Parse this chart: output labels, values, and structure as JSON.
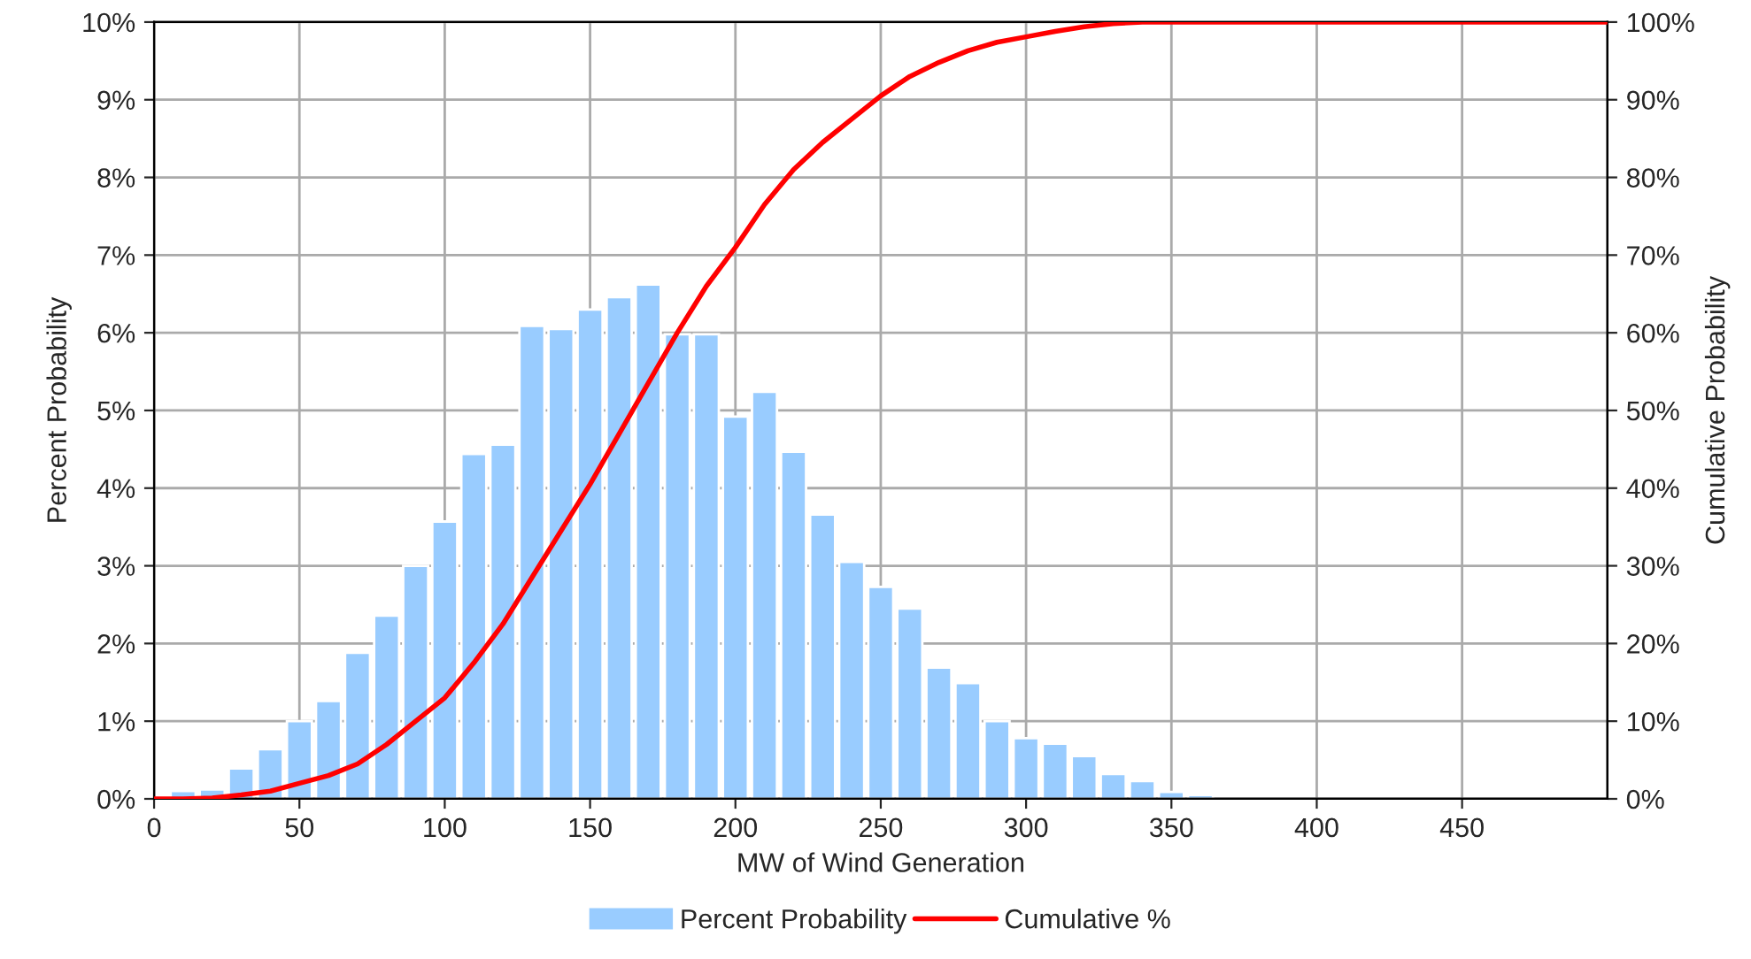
{
  "chart_data": {
    "type": "bar",
    "xlabel": "MW of Wind Generation",
    "ylabel": "Percent Probability",
    "y2label": "Cumulative Probability",
    "xlim": [
      0,
      500
    ],
    "xticks": [
      0,
      50,
      100,
      150,
      200,
      250,
      300,
      350,
      400,
      450
    ],
    "ylim": [
      0,
      10
    ],
    "yticks": [
      {
        "value": 0,
        "label": "0%"
      },
      {
        "value": 1,
        "label": "1%"
      },
      {
        "value": 2,
        "label": "2%"
      },
      {
        "value": 3,
        "label": "3%"
      },
      {
        "value": 4,
        "label": "4%"
      },
      {
        "value": 5,
        "label": "5%"
      },
      {
        "value": 6,
        "label": "6%"
      },
      {
        "value": 7,
        "label": "7%"
      },
      {
        "value": 8,
        "label": "8%"
      },
      {
        "value": 9,
        "label": "9%"
      },
      {
        "value": 10,
        "label": "10%"
      }
    ],
    "y2lim": [
      0,
      100
    ],
    "y2ticks": [
      {
        "value": 0,
        "label": "0%"
      },
      {
        "value": 10,
        "label": "10%"
      },
      {
        "value": 20,
        "label": "20%"
      },
      {
        "value": 30,
        "label": "30%"
      },
      {
        "value": 40,
        "label": "40%"
      },
      {
        "value": 50,
        "label": "50%"
      },
      {
        "value": 60,
        "label": "60%"
      },
      {
        "value": 70,
        "label": "70%"
      },
      {
        "value": 80,
        "label": "80%"
      },
      {
        "value": 90,
        "label": "90%"
      },
      {
        "value": 100,
        "label": "100%"
      }
    ],
    "grid": true,
    "legend": "bottom",
    "series": [
      {
        "name": "Percent Probability",
        "color": "#99ccff",
        "x": [
          10,
          20,
          30,
          40,
          50,
          60,
          70,
          80,
          90,
          100,
          110,
          120,
          130,
          140,
          150,
          160,
          170,
          180,
          190,
          200,
          210,
          220,
          230,
          240,
          250,
          260,
          270,
          280,
          290,
          300,
          310,
          320,
          330,
          340,
          350,
          360
        ],
        "values": [
          0.1,
          0.12,
          0.39,
          0.64,
          1.0,
          1.26,
          1.88,
          2.36,
          3.0,
          3.57,
          4.44,
          4.56,
          6.09,
          6.05,
          6.3,
          6.46,
          6.62,
          5.98,
          5.98,
          4.92,
          5.24,
          4.47,
          3.66,
          3.05,
          2.73,
          2.45,
          1.69,
          1.49,
          1.0,
          0.78,
          0.71,
          0.55,
          0.32,
          0.23,
          0.09,
          0.05
        ]
      },
      {
        "name": "Cumulative %",
        "type": "line",
        "axis": "y2",
        "color": "#ff0000",
        "x": [
          0,
          10,
          20,
          30,
          40,
          50,
          60,
          70,
          80,
          90,
          100,
          110,
          120,
          130,
          140,
          150,
          160,
          170,
          180,
          190,
          200,
          210,
          220,
          230,
          240,
          250,
          260,
          270,
          280,
          290,
          300,
          310,
          320,
          330,
          340,
          350,
          400,
          450,
          500
        ],
        "values": [
          0,
          0,
          0.1,
          0.5,
          1,
          2,
          3,
          4.5,
          7,
          10,
          13,
          17.5,
          22.5,
          28.5,
          34.5,
          40.5,
          47,
          53.5,
          60,
          66,
          71,
          76.5,
          81,
          84.5,
          87.5,
          90.5,
          93,
          94.8,
          96.3,
          97.4,
          98.1,
          98.8,
          99.4,
          99.8,
          100,
          100,
          100,
          100,
          100
        ]
      }
    ]
  }
}
